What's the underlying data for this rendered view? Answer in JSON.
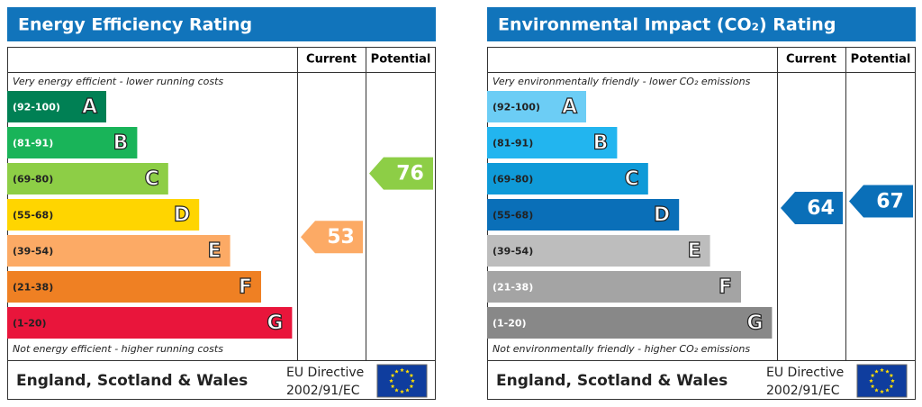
{
  "panels": [
    {
      "title": "Energy Efficiency Rating",
      "header": {
        "current": "Current",
        "potential": "Potential"
      },
      "top_note": "Very energy efficient - lower running costs",
      "bottom_note": "Not energy efficient - higher running costs",
      "bands": [
        {
          "range": "(92-100)",
          "letter": "A",
          "color": "#008054",
          "text_color": "#ffffff"
        },
        {
          "range": "(81-91)",
          "letter": "B",
          "color": "#19b459",
          "text_color": "#ffffff"
        },
        {
          "range": "(69-80)",
          "letter": "C",
          "color": "#8dce46",
          "text_color": "#222222"
        },
        {
          "range": "(55-68)",
          "letter": "D",
          "color": "#ffd500",
          "text_color": "#222222"
        },
        {
          "range": "(39-54)",
          "letter": "E",
          "color": "#fcaa65",
          "text_color": "#222222"
        },
        {
          "range": "(21-38)",
          "letter": "F",
          "color": "#ef8023",
          "text_color": "#222222"
        },
        {
          "range": "(1-20)",
          "letter": "G",
          "color": "#e9153b",
          "text_color": "#222222"
        }
      ],
      "current": 53,
      "potential": 76,
      "footer": {
        "region": "England, Scotland & Wales",
        "directive": [
          "EU Directive",
          "2002/91/EC"
        ]
      }
    },
    {
      "title": "Environmental Impact (CO₂) Rating",
      "header": {
        "current": "Current",
        "potential": "Potential"
      },
      "top_note": "Very environmentally friendly - lower CO₂ emissions",
      "bottom_note": "Not environmentally friendly - higher CO₂ emissions",
      "bands": [
        {
          "range": "(92-100)",
          "letter": "A",
          "color": "#6ccdf5",
          "text_color": "#222222"
        },
        {
          "range": "(81-91)",
          "letter": "B",
          "color": "#22b5ef",
          "text_color": "#222222"
        },
        {
          "range": "(69-80)",
          "letter": "C",
          "color": "#0f9ad8",
          "text_color": "#222222"
        },
        {
          "range": "(55-68)",
          "letter": "D",
          "color": "#0a6fb8",
          "text_color": "#222222"
        },
        {
          "range": "(39-54)",
          "letter": "E",
          "color": "#bdbdbd",
          "text_color": "#222222"
        },
        {
          "range": "(21-38)",
          "letter": "F",
          "color": "#a4a4a4",
          "text_color": "#ffffff"
        },
        {
          "range": "(1-20)",
          "letter": "G",
          "color": "#888888",
          "text_color": "#ffffff"
        }
      ],
      "current": 64,
      "potential": 67,
      "footer": {
        "region": "England, Scotland & Wales",
        "directive": [
          "EU Directive",
          "2002/91/EC"
        ]
      }
    }
  ]
}
